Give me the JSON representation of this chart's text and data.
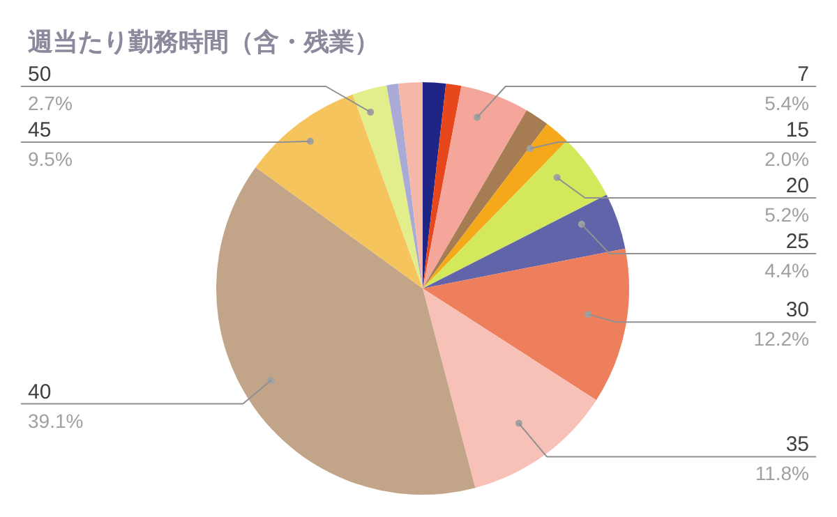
{
  "chart_data": {
    "type": "pie",
    "title": "週当たり勤務時間（含・残業）",
    "categories": [
      null,
      null,
      "7",
      null,
      "15",
      "20",
      "25",
      "30",
      "35",
      "40",
      "45",
      "50",
      null,
      null
    ],
    "values": [
      1.8,
      1.2,
      5.4,
      1.9,
      2.0,
      5.2,
      4.4,
      12.2,
      11.8,
      39.1,
      9.5,
      2.7,
      0.9,
      1.9
    ],
    "value_labels": [
      null,
      null,
      "5.4%",
      null,
      "2.0%",
      "5.2%",
      "4.4%",
      "12.2%",
      "11.8%",
      "39.1%",
      "9.5%",
      "2.7%",
      null,
      null
    ],
    "colors": [
      "#1f2585",
      "#e8471c",
      "#f4a69a",
      "#a67c52",
      "#f5a81a",
      "#d4e85c",
      "#6264aa",
      "#ee7f5c",
      "#f8c1b8",
      "#c2a588",
      "#f6c45c",
      "#e2ee8c",
      "#a9aad6",
      "#f5b8a8"
    ],
    "legend": false
  }
}
